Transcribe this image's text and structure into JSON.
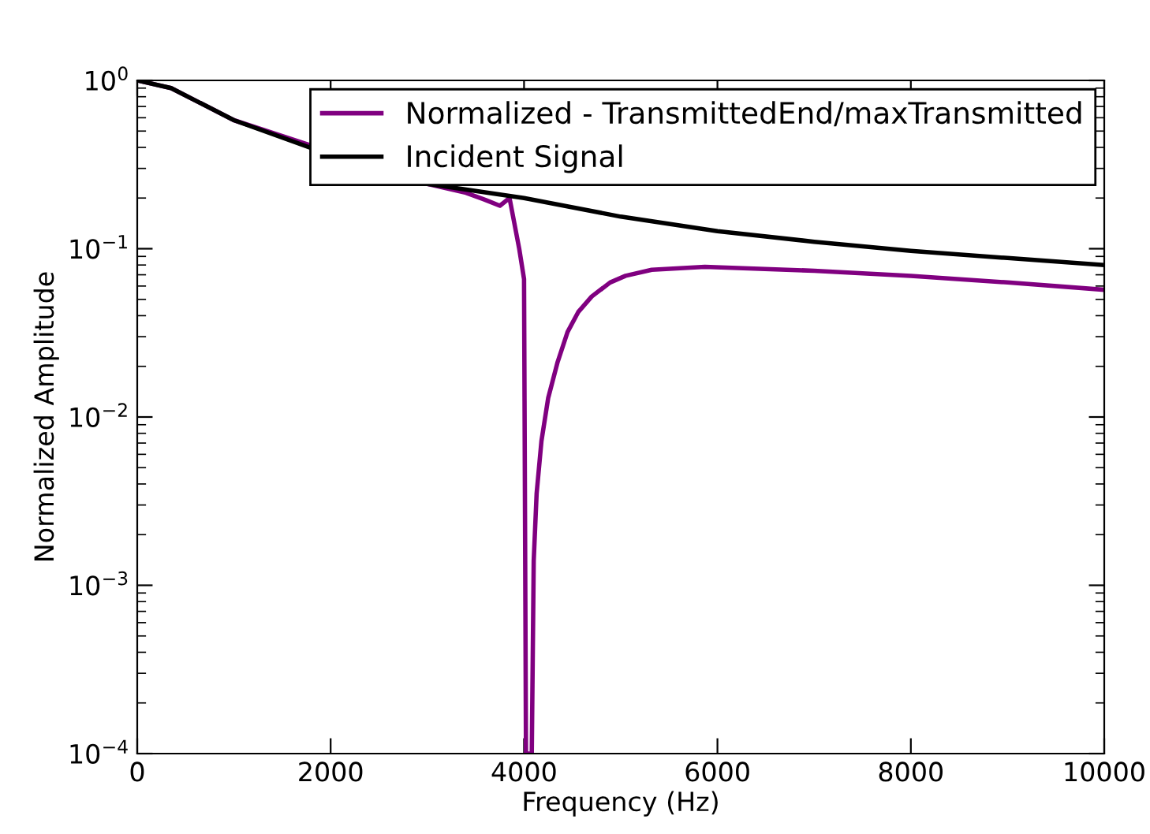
{
  "chart_data": {
    "type": "line",
    "xlabel": "Frequency (Hz)",
    "ylabel": "Normalized Amplitude",
    "log": "y",
    "grid": false,
    "legend": "top right",
    "xlim": [
      0,
      10000
    ],
    "xticks": [
      0,
      2000,
      4000,
      6000,
      8000,
      10000
    ],
    "ylim": [
      0.0001,
      1.0
    ],
    "yticks": [
      {
        "value": 0.0001,
        "label": "10$^{−4}$"
      },
      {
        "value": 0.001,
        "label": "10$^{−3}$"
      },
      {
        "value": 0.01,
        "label": "10$^{−2}$"
      },
      {
        "value": 0.1,
        "label": "10$^{−1}$"
      },
      {
        "value": 1,
        "label": "10$^{0}$"
      }
    ],
    "series": [
      {
        "name": "Normalized - TransmittedEnd/maxTransmitted",
        "color": "#800080",
        "x": [
          0,
          350,
          1000,
          3000,
          3400,
          3600,
          3750,
          3850,
          3950,
          4000,
          4020,
          4080,
          4100,
          4130,
          4180,
          4250,
          4345,
          4450,
          4560,
          4700,
          4890,
          5050,
          5320,
          5870,
          7000,
          8000,
          9000,
          10000
        ],
        "values": [
          1.0,
          0.9,
          0.58,
          0.243,
          0.215,
          0.195,
          0.18,
          0.2,
          0.1,
          0.066,
          0.0001,
          0.0001,
          0.0014,
          0.0035,
          0.0072,
          0.013,
          0.021,
          0.032,
          0.042,
          0.052,
          0.063,
          0.069,
          0.075,
          0.078,
          0.074,
          0.069,
          0.063,
          0.057
        ]
      },
      {
        "name": "Incident Signal",
        "color": "#000000",
        "x": [
          0,
          350,
          1000,
          2000,
          3000,
          4000,
          5000,
          6000,
          7000,
          8000,
          9000,
          10000
        ],
        "values": [
          1.0,
          0.9,
          0.58,
          0.36,
          0.243,
          0.2,
          0.155,
          0.127,
          0.11,
          0.097,
          0.088,
          0.08
        ]
      }
    ]
  }
}
